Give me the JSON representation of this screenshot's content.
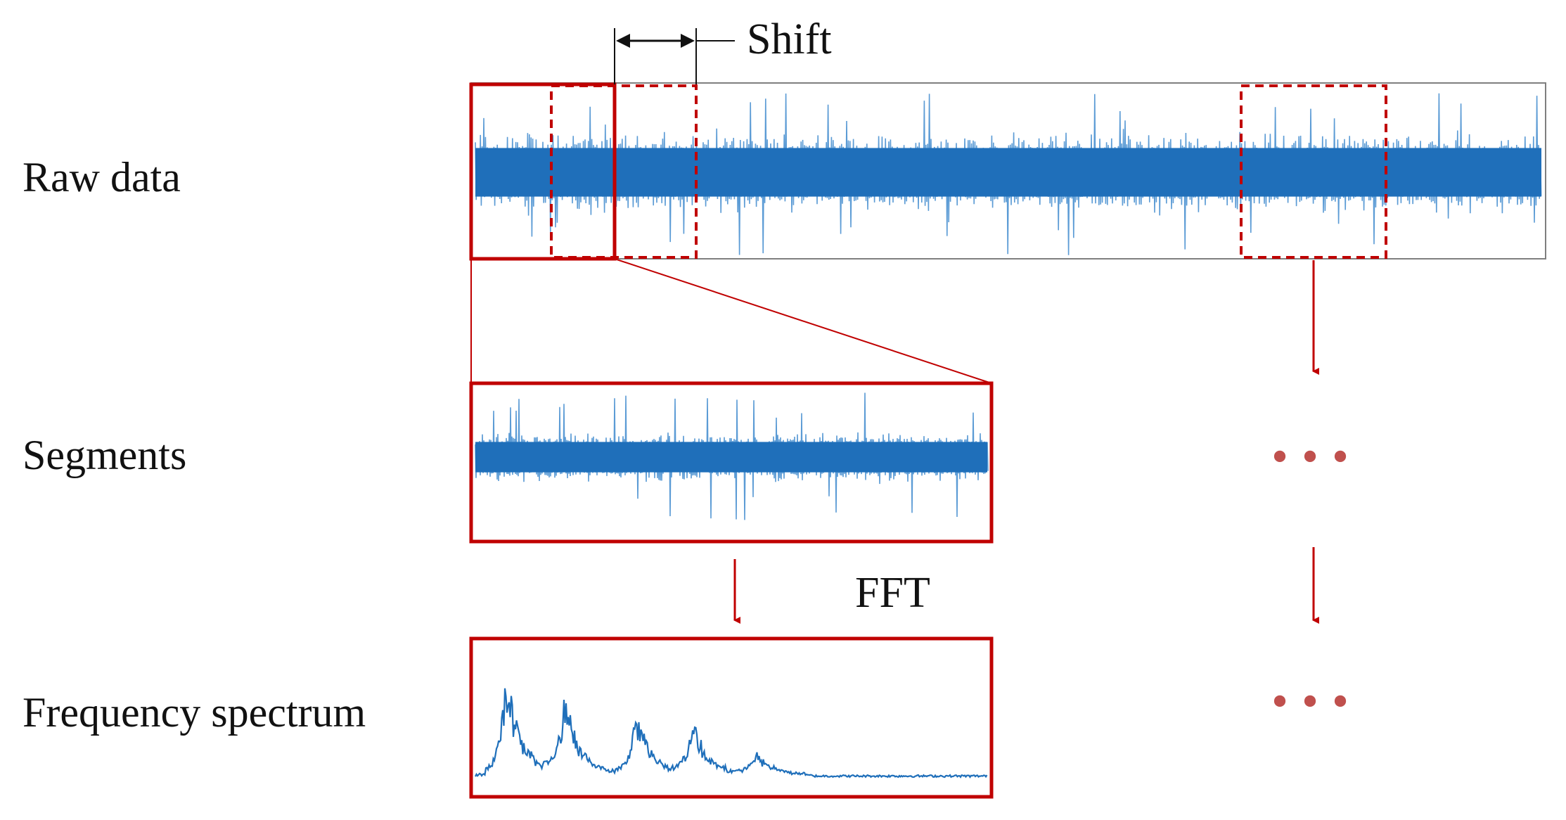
{
  "labels": {
    "raw_data": "Raw data",
    "segments": "Segments",
    "frequency_spectrum": "Frequency spectrum",
    "shift": "Shift",
    "fft": "FFT"
  },
  "colors": {
    "signal": "#1f6fba",
    "signal_light": "#5b9bd5",
    "frame": "#c00000",
    "raw_border": "#7f7f7f",
    "text": "#111111",
    "dots": "#c0504d"
  },
  "ellipsis": {
    "segments_row": "•••",
    "spectrum_row": "•••"
  }
}
